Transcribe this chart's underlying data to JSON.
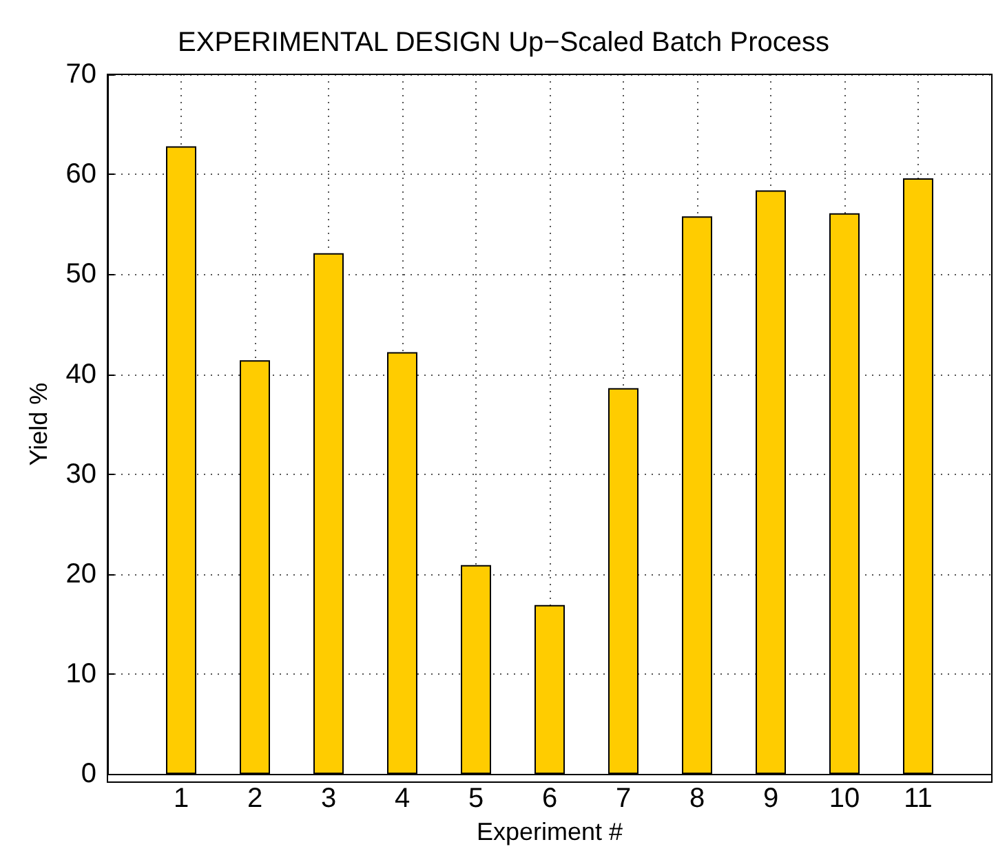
{
  "chart_data": {
    "type": "bar",
    "title": "EXPERIMENTAL DESIGN Up−Scaled Batch Process",
    "xlabel": "Experiment #",
    "ylabel": "Yield %",
    "x": [
      1,
      2,
      3,
      4,
      5,
      6,
      7,
      8,
      9,
      10,
      11
    ],
    "values": [
      62.8,
      41.4,
      52.1,
      42.2,
      20.9,
      16.9,
      38.6,
      55.8,
      58.4,
      56.1,
      59.6
    ],
    "color": "#ffcc00",
    "xlim": [
      0,
      12
    ],
    "xticks": [
      1,
      2,
      3,
      4,
      5,
      6,
      7,
      8,
      9,
      10,
      11
    ],
    "ylim": [
      0,
      70
    ],
    "yticks": [
      0,
      10,
      20,
      30,
      40,
      50,
      60,
      70
    ],
    "grid": true
  }
}
